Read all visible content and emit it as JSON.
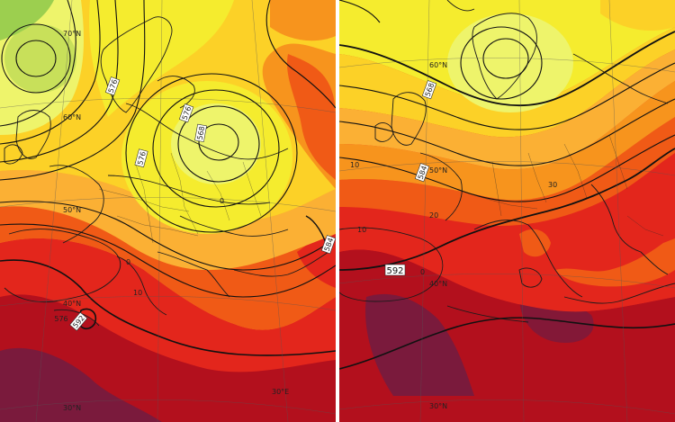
{
  "maps": [
    {
      "id": "left",
      "contour_labels": [
        "576",
        "576",
        "576",
        "568",
        "584",
        "576",
        "592"
      ],
      "grid_labels": [
        "70°N",
        "60°N",
        "50°N",
        "40°N",
        "30°N",
        "30°E",
        "0",
        "0",
        "10"
      ]
    },
    {
      "id": "right",
      "contour_labels": [
        "568",
        "584",
        "592"
      ],
      "grid_labels": [
        "60°N",
        "50°N",
        "40°N",
        "30°N",
        "30",
        "10",
        "20",
        "10",
        "0"
      ]
    }
  ],
  "colors": {
    "deep_purple": "#7a1a3c",
    "dark_red": "#b3101d",
    "red": "#e3261c",
    "orange_red": "#f05a16",
    "orange": "#f7941d",
    "light_orange": "#fbb034",
    "yellow_orange": "#fcd127",
    "yellow": "#f5ec2e",
    "light_yellow": "#eef46b",
    "green_yellow": "#c8e05a",
    "green": "#9ccf4f",
    "coast": "#1b1b1b",
    "contour": "#111111"
  }
}
